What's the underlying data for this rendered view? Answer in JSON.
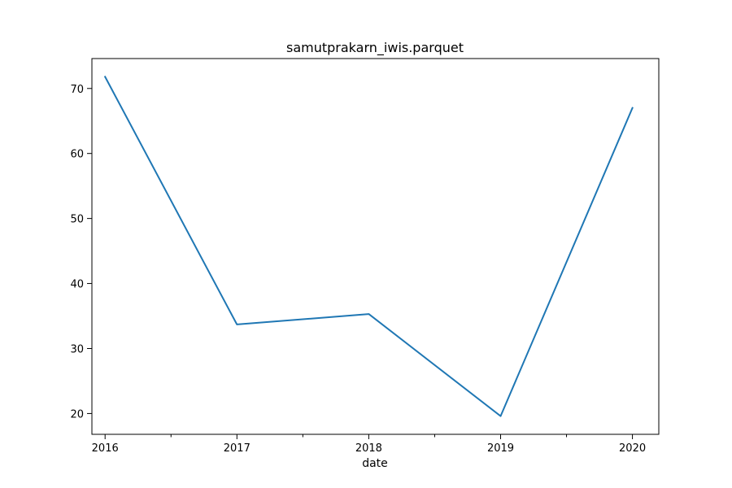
{
  "chart_data": {
    "type": "line",
    "title": "samutprakarn_iwis.parquet",
    "xlabel": "date",
    "ylabel": "",
    "x": [
      "2016",
      "2017",
      "2018",
      "2019",
      "2020"
    ],
    "series": [
      {
        "values": [
          71.8,
          33.7,
          35.3,
          19.6,
          67.0
        ],
        "color": "#1f77b4"
      }
    ],
    "xlim": [
      2015.9,
      2020.2
    ],
    "ylim": [
      16.8,
      74.6
    ],
    "yticks": [
      20,
      30,
      40,
      50,
      60,
      70
    ],
    "grid": false,
    "legend": false
  }
}
